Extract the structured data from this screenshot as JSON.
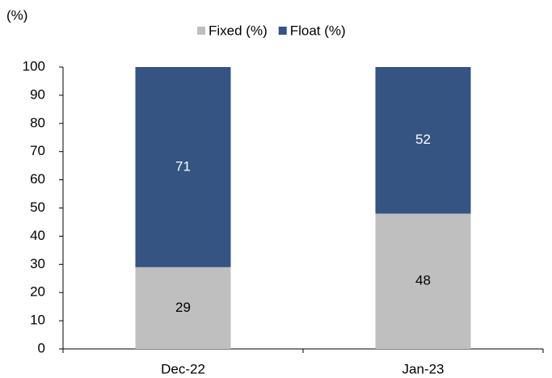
{
  "chart_data": {
    "type": "bar",
    "stacked": true,
    "ylabel": "(%)",
    "categories": [
      "Dec-22",
      "Jan-23"
    ],
    "series": [
      {
        "name": "Fixed (%)",
        "color": "#bfbfbf",
        "label_color": "#000000",
        "values": [
          29,
          48
        ]
      },
      {
        "name": "Float (%)",
        "color": "#355482",
        "label_color": "#ffffff",
        "values": [
          71,
          52
        ]
      }
    ],
    "ylim": [
      0,
      100
    ],
    "yticks": [
      0,
      10,
      20,
      30,
      40,
      50,
      60,
      70,
      80,
      90,
      100
    ],
    "legend": "top",
    "grid": false
  }
}
